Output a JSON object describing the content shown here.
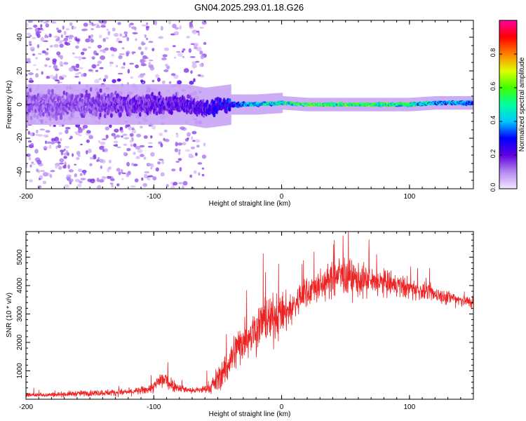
{
  "title": "GN04.2025.293.01.18.G26",
  "chart_data": [
    {
      "type": "heatmap",
      "xlabel": "Height of straight line (km)",
      "ylabel": "Frequency (Hz)",
      "xlim": [
        -200,
        150
      ],
      "ylim": [
        -50,
        50
      ],
      "x_ticks": [
        -200,
        -100,
        0,
        100
      ],
      "x_tick_labels": [
        "-200",
        "-100",
        "0",
        "100"
      ],
      "y_ticks": [
        -40,
        -20,
        0,
        20,
        40
      ],
      "y_tick_labels": [
        "-40",
        "-20",
        "0",
        "20",
        "40"
      ],
      "colorbar": {
        "label": "Normalized spectral amplitude",
        "range": [
          0,
          1
        ],
        "ticks": [
          0.0,
          0.2,
          0.4,
          0.6,
          0.8
        ],
        "tick_labels": [
          "0.0",
          "0.2",
          "0.4",
          "0.6",
          "0.8"
        ],
        "colormap": [
          "#f6e6ff",
          "#b488f0",
          "#6000e0",
          "#0000ff",
          "#00c8ff",
          "#00ffa0",
          "#40ff00",
          "#e0ff00",
          "#ff8000",
          "#ff0000",
          "#ff00a0"
        ]
      },
      "ridge": [
        {
          "x": -200,
          "freq": 0,
          "spread": 6,
          "amp": 0.22
        },
        {
          "x": -150,
          "freq": 0,
          "spread": 5,
          "amp": 0.25
        },
        {
          "x": -110,
          "freq": 0,
          "spread": 4,
          "amp": 0.3
        },
        {
          "x": -75,
          "freq": 0,
          "spread": 3.5,
          "amp": 0.35
        },
        {
          "x": -60,
          "freq": -2,
          "spread": 3,
          "amp": 0.38
        },
        {
          "x": -40,
          "freq": 0,
          "spread": 2.5,
          "amp": 0.5
        },
        {
          "x": -20,
          "freq": 0,
          "spread": 1.5,
          "amp": 0.75
        },
        {
          "x": 0,
          "freq": 1,
          "spread": 1.3,
          "amp": 0.85
        },
        {
          "x": 20,
          "freq": 0,
          "spread": 1.2,
          "amp": 0.95
        },
        {
          "x": 60,
          "freq": 0,
          "spread": 1.2,
          "amp": 0.92
        },
        {
          "x": 100,
          "freq": 0,
          "spread": 1.3,
          "amp": 0.85
        },
        {
          "x": 120,
          "freq": 1,
          "spread": 1.5,
          "amp": 0.7
        },
        {
          "x": 150,
          "freq": 1,
          "spread": 1.8,
          "amp": 0.6
        }
      ],
      "noise_cutoff_x": -70
    },
    {
      "type": "line",
      "xlabel": "Height of straight line (km)",
      "ylabel": "SNR (10 * v/v)",
      "xlim": [
        -200,
        150
      ],
      "ylim": [
        0,
        5900
      ],
      "x_ticks": [
        -200,
        -100,
        0,
        100
      ],
      "x_tick_labels": [
        "-200",
        "-100",
        "0",
        "100"
      ],
      "y_ticks": [
        1000,
        2000,
        3000,
        4000,
        5000
      ],
      "y_tick_labels": [
        "1000",
        "2000",
        "3000",
        "4000",
        "5000"
      ],
      "line_color": "#ee2222",
      "series": [
        {
          "x": [
            -200,
            -180,
            -160,
            -140,
            -120,
            -110,
            -100,
            -95,
            -90,
            -85,
            -80,
            -70,
            -60,
            -55,
            -50,
            -45,
            -40,
            -35,
            -30,
            -25,
            -20,
            -15,
            -10,
            -5,
            0,
            5,
            10,
            15,
            20,
            30,
            40,
            45,
            50,
            60,
            70,
            80,
            90,
            100,
            110,
            120,
            130,
            140,
            150
          ],
          "values": [
            150,
            160,
            200,
            230,
            250,
            300,
            400,
            700,
            650,
            500,
            400,
            300,
            350,
            450,
            700,
            1000,
            1400,
            1800,
            2100,
            2300,
            2500,
            2700,
            2800,
            2900,
            3000,
            3100,
            3300,
            3600,
            3800,
            4000,
            4200,
            4400,
            4300,
            4200,
            4100,
            4100,
            4000,
            3900,
            3800,
            3700,
            3600,
            3500,
            3400
          ],
          "noise": [
            80,
            90,
            110,
            120,
            130,
            150,
            200,
            450,
            400,
            250,
            150,
            120,
            160,
            300,
            500,
            600,
            700,
            800,
            800,
            800,
            900,
            1000,
            900,
            900,
            800,
            700,
            650,
            600,
            600,
            600,
            650,
            800,
            750,
            650,
            600,
            500,
            450,
            400,
            330,
            300,
            280,
            260,
            250
          ]
        }
      ]
    }
  ]
}
